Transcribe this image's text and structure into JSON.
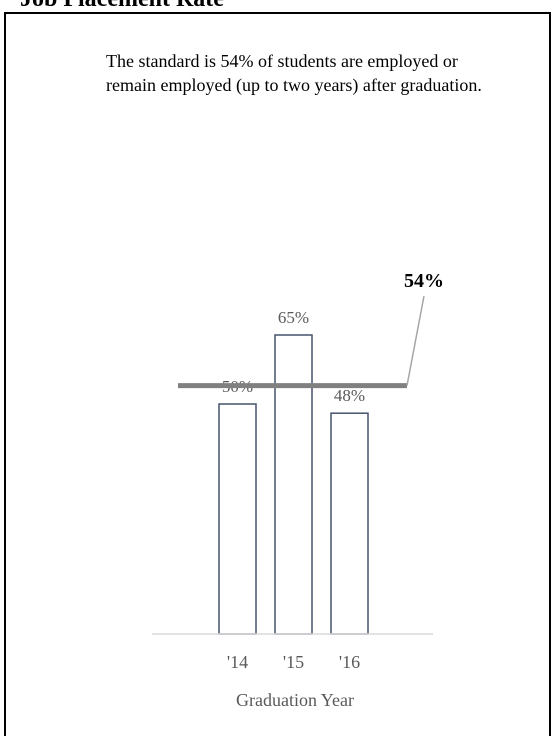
{
  "page": {
    "title": "Job Placement Rate",
    "standard_text": "The standard is 54% of students are employed or remain employed (up to two years) after graduation."
  },
  "chart_data": {
    "type": "bar",
    "categories": [
      "'14",
      "'15",
      "'16"
    ],
    "values": [
      50,
      65,
      48
    ],
    "data_labels": [
      "50%",
      "65%",
      "48%"
    ],
    "title": "",
    "xlabel": "Graduation Year",
    "ylabel": "",
    "ylim": [
      0,
      75
    ],
    "grid": false,
    "reference_line": {
      "value": 54,
      "label": "54%"
    },
    "colors": {
      "bar_fill": "#ffffff",
      "bar_stroke": "#44546a",
      "reference_line": "#808080",
      "axis": "#d9d9d9"
    }
  }
}
